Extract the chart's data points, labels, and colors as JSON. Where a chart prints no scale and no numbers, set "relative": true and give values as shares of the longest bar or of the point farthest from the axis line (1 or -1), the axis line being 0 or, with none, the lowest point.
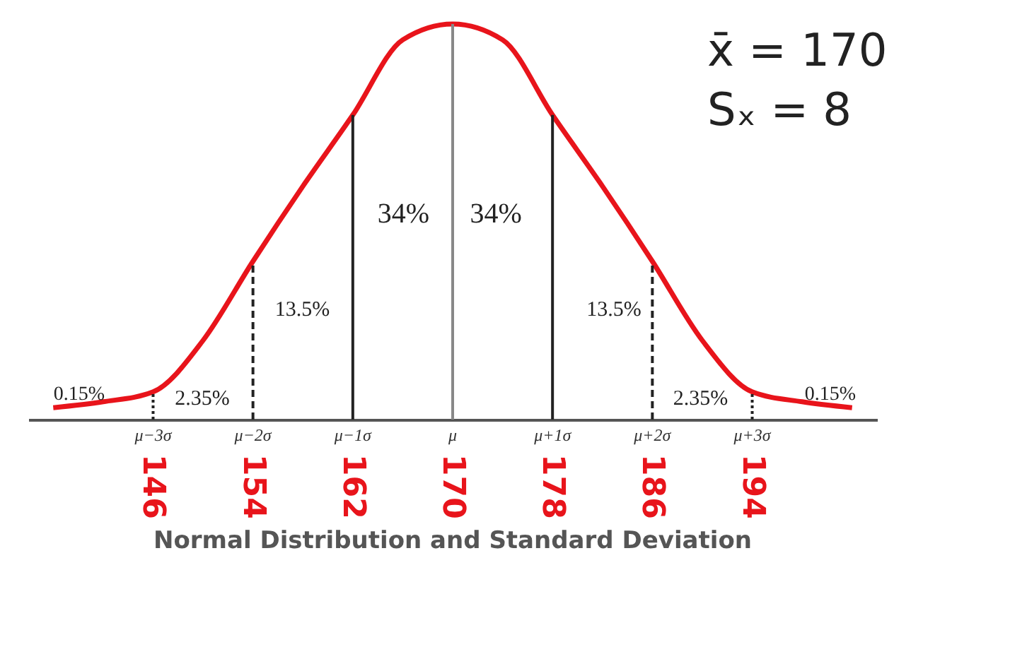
{
  "chart_data": {
    "type": "line",
    "relative": true,
    "title": "Normal Distribution and Standard Deviation",
    "x": [
      138,
      142,
      146,
      150,
      154,
      158,
      162,
      166,
      170,
      174,
      178,
      182,
      186,
      190,
      194,
      198,
      202
    ],
    "series": [
      {
        "color": "#e8141b",
        "values": [
          0.03,
          0.045,
          0.07,
          0.2,
          0.4,
          0.59,
          0.77,
          0.96,
          1,
          0.96,
          0.77,
          0.59,
          0.4,
          0.2,
          0.07,
          0.045,
          0.03
        ]
      }
    ],
    "xlim": [
      136,
      204
    ],
    "xticks": [
      146,
      154,
      162,
      170,
      178,
      186,
      194
    ],
    "grid": false,
    "marker": "none",
    "line_style": "solid",
    "ref_lines": [
      {
        "axis": "x",
        "value": 146,
        "label": "μ−3σ",
        "color": "#222222",
        "line_style": "dotted"
      },
      {
        "axis": "x",
        "value": 154,
        "label": "μ−2σ",
        "color": "#222222",
        "line_style": "dashed"
      },
      {
        "axis": "x",
        "value": 162,
        "label": "μ−1σ",
        "color": "#222222",
        "line_style": "solid"
      },
      {
        "axis": "x",
        "value": 170,
        "label": "μ",
        "color": "#888888",
        "line_style": "solid"
      },
      {
        "axis": "x",
        "value": 178,
        "label": "μ+1σ",
        "color": "#222222",
        "line_style": "solid"
      },
      {
        "axis": "x",
        "value": 186,
        "label": "μ+2σ",
        "color": "#222222",
        "line_style": "dashed"
      },
      {
        "axis": "x",
        "value": 194,
        "label": "μ+3σ",
        "color": "#222222",
        "line_style": "dotted"
      }
    ],
    "annotations": [
      "34%",
      "34%",
      "13.5%",
      "13.5%",
      "2.35%",
      "2.35%",
      "0.15%",
      "0.15%",
      "x̄ = 170",
      "Sₓ = 8"
    ]
  }
}
